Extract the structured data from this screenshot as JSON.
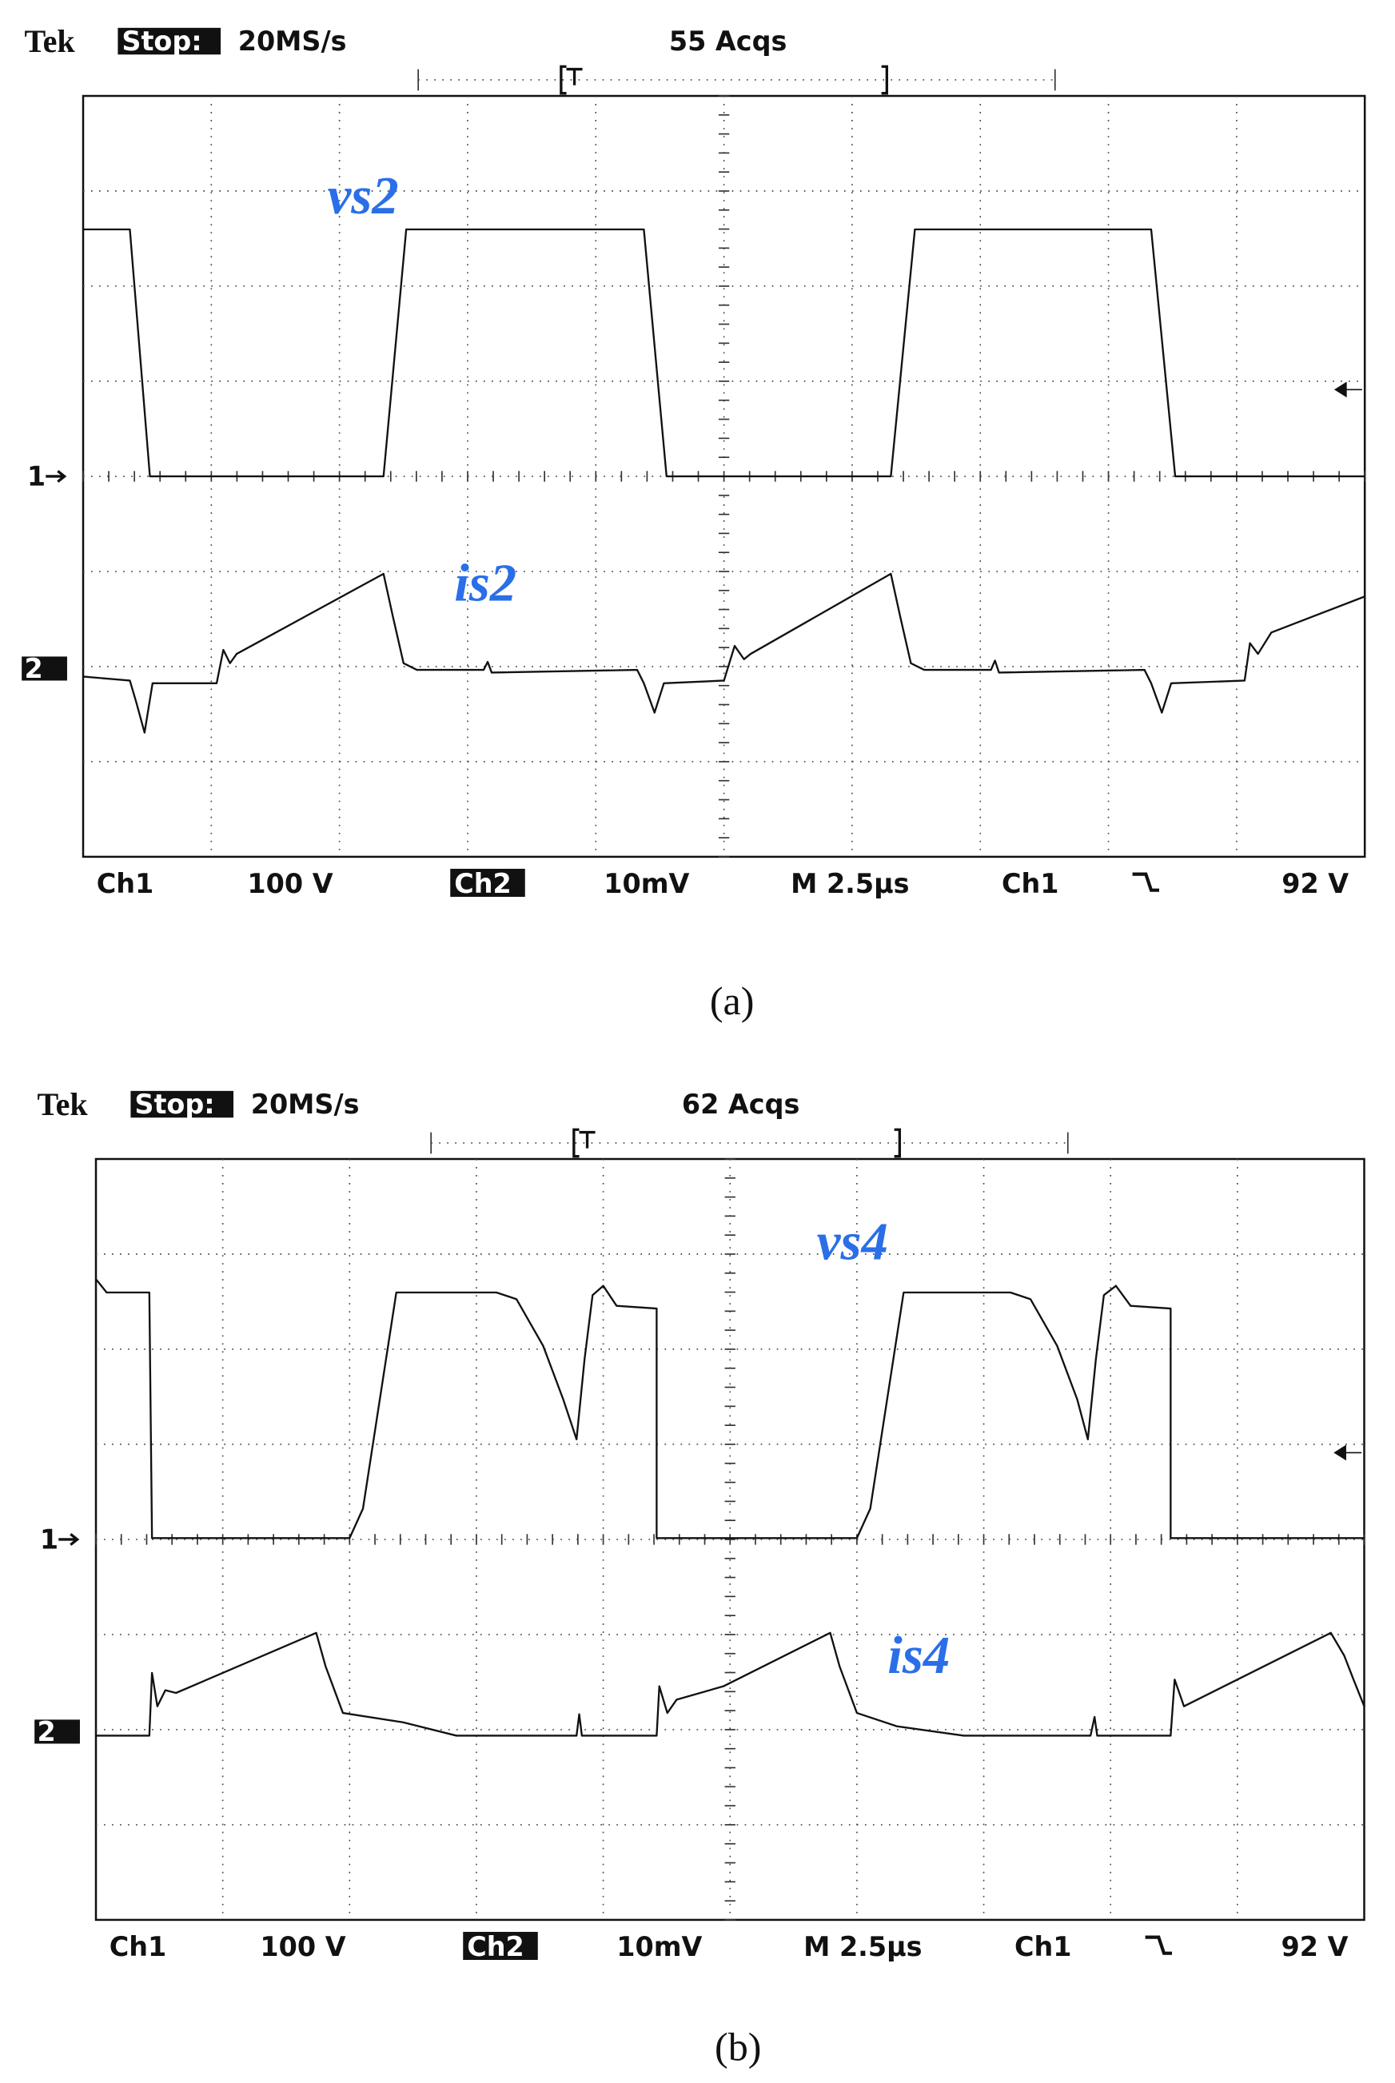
{
  "figures": [
    {
      "header": {
        "brand": "Tek",
        "status": "Stop:",
        "sample_rate": "20MS/s",
        "acquisitions": "55 Acqs"
      },
      "trace_labels": [
        "vs2",
        "is2"
      ],
      "channel_markers": [
        "1",
        "2"
      ],
      "footer": {
        "ch1": "Ch1",
        "ch1_scale": "100 V",
        "ch2": "Ch2",
        "ch2_scale": "10mV",
        "timebase": "M 2.5µs",
        "trigger_source": "Ch1",
        "trigger_level": "92 V"
      },
      "caption": "(a)"
    },
    {
      "header": {
        "brand": "Tek",
        "status": "Stop:",
        "sample_rate": "20MS/s",
        "acquisitions": "62 Acqs"
      },
      "trace_labels": [
        "vs4",
        "is4"
      ],
      "channel_markers": [
        "1",
        "2"
      ],
      "footer": {
        "ch1": "Ch1",
        "ch1_scale": "100 V",
        "ch2": "Ch2",
        "ch2_scale": "10mV",
        "timebase": "M 2.5µs",
        "trigger_source": "Ch1",
        "trigger_level": "92 V"
      },
      "caption": "(b)"
    }
  ]
}
